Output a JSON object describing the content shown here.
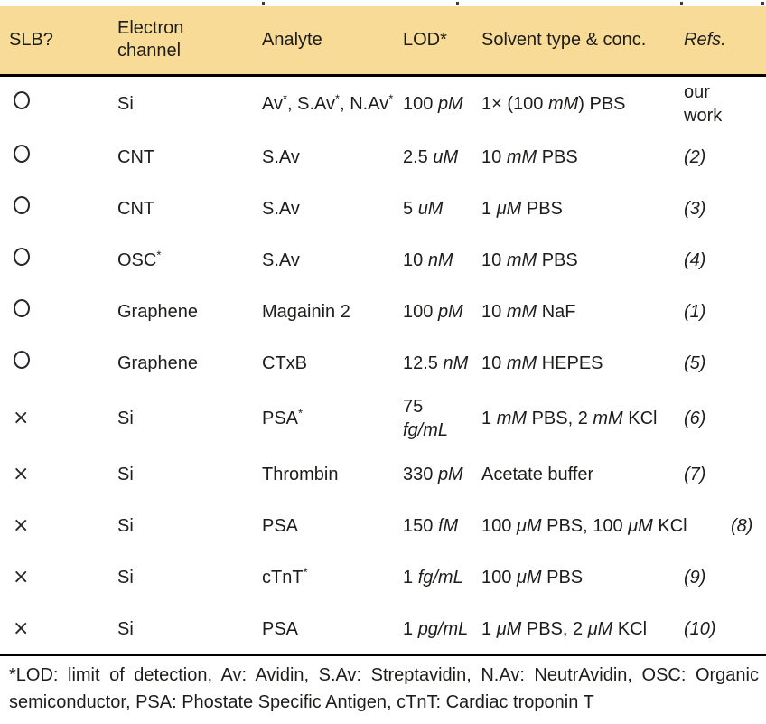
{
  "page": {
    "header_bg": "#F8DB96",
    "text_color": "#1d1d1b"
  },
  "glyphs": {
    "cross": "×",
    "circle": "○"
  },
  "table": {
    "columns": [
      {
        "id": "slb",
        "label": "SLB?"
      },
      {
        "id": "channel",
        "label": "Electron channel"
      },
      {
        "id": "analyte",
        "label": "Analyte"
      },
      {
        "id": "lod",
        "label": "LOD*"
      },
      {
        "id": "solvent",
        "label": "Solvent type & conc."
      },
      {
        "id": "refs",
        "label": "Refs."
      }
    ],
    "rows": [
      {
        "slb": "circle",
        "channel": [
          {
            "t": "Si",
            "s": "n"
          }
        ],
        "analyte": [
          {
            "t": "Av",
            "s": "n"
          },
          {
            "t": "*",
            "s": "sup"
          },
          {
            "t": ", S.Av",
            "s": "n"
          },
          {
            "t": "*",
            "s": "sup"
          },
          {
            "t": ", N.Av",
            "s": "n"
          },
          {
            "t": "*",
            "s": "sup"
          }
        ],
        "lod": [
          {
            "t": "100 ",
            "s": "n"
          },
          {
            "t": "pM",
            "s": "i"
          }
        ],
        "solvent": [
          {
            "t": "1× (100 ",
            "s": "n"
          },
          {
            "t": "mM",
            "s": "i"
          },
          {
            "t": ") PBS",
            "s": "n"
          }
        ],
        "ref": [
          {
            "t": "our",
            "s": "n"
          },
          {
            "s": "br"
          },
          {
            "t": "work",
            "s": "n"
          }
        ]
      },
      {
        "slb": "circle",
        "channel": [
          {
            "t": "CNT",
            "s": "n"
          }
        ],
        "analyte": [
          {
            "t": "S.Av",
            "s": "n"
          }
        ],
        "lod": [
          {
            "t": "2.5 ",
            "s": "n"
          },
          {
            "t": "uM",
            "s": "i"
          }
        ],
        "solvent": [
          {
            "t": "10 ",
            "s": "n"
          },
          {
            "t": "mM",
            "s": "i"
          },
          {
            "t": " PBS",
            "s": "n"
          }
        ],
        "ref": [
          {
            "t": "(2)",
            "s": "i"
          }
        ]
      },
      {
        "slb": "circle",
        "channel": [
          {
            "t": "CNT",
            "s": "n"
          }
        ],
        "analyte": [
          {
            "t": "S.Av",
            "s": "n"
          }
        ],
        "lod": [
          {
            "t": "5 ",
            "s": "n"
          },
          {
            "t": "uM",
            "s": "i"
          }
        ],
        "solvent": [
          {
            "t": "1 ",
            "s": "n"
          },
          {
            "t": "μM",
            "s": "i"
          },
          {
            "t": " PBS",
            "s": "n"
          }
        ],
        "ref": [
          {
            "t": "(3)",
            "s": "i"
          }
        ]
      },
      {
        "slb": "circle",
        "channel": [
          {
            "t": "OSC",
            "s": "n"
          },
          {
            "t": "*",
            "s": "sup"
          }
        ],
        "analyte": [
          {
            "t": "S.Av",
            "s": "n"
          }
        ],
        "lod": [
          {
            "t": "10 ",
            "s": "n"
          },
          {
            "t": "nM",
            "s": "i"
          }
        ],
        "solvent": [
          {
            "t": "10 ",
            "s": "n"
          },
          {
            "t": "mM",
            "s": "i"
          },
          {
            "t": " PBS",
            "s": "n"
          }
        ],
        "ref": [
          {
            "t": "(4)",
            "s": "i"
          }
        ]
      },
      {
        "slb": "circle",
        "channel": [
          {
            "t": "Graphene",
            "s": "n"
          }
        ],
        "analyte": [
          {
            "t": "Magainin 2",
            "s": "n"
          }
        ],
        "lod": [
          {
            "t": "100 ",
            "s": "n"
          },
          {
            "t": "pM",
            "s": "i"
          }
        ],
        "solvent": [
          {
            "t": "10 ",
            "s": "n"
          },
          {
            "t": "mM",
            "s": "i"
          },
          {
            "t": " NaF",
            "s": "n"
          }
        ],
        "ref": [
          {
            "t": "(1)",
            "s": "i"
          }
        ]
      },
      {
        "slb": "circle",
        "channel": [
          {
            "t": "Graphene",
            "s": "n"
          }
        ],
        "analyte": [
          {
            "t": "CTxB",
            "s": "n"
          }
        ],
        "lod": [
          {
            "t": "12.5 ",
            "s": "n"
          },
          {
            "t": "nM",
            "s": "i"
          }
        ],
        "solvent": [
          {
            "t": "10 ",
            "s": "n"
          },
          {
            "t": "mM",
            "s": "i"
          },
          {
            "t": " HEPES",
            "s": "n"
          }
        ],
        "ref": [
          {
            "t": "(5)",
            "s": "i"
          }
        ]
      },
      {
        "slb": "cross",
        "channel": [
          {
            "t": "Si",
            "s": "n"
          }
        ],
        "analyte": [
          {
            "t": "PSA",
            "s": "n"
          },
          {
            "t": "*",
            "s": "sup"
          }
        ],
        "lod": [
          {
            "t": "75",
            "s": "n"
          },
          {
            "s": "br"
          },
          {
            "t": "fg/mL",
            "s": "i"
          }
        ],
        "solvent": [
          {
            "t": "1 ",
            "s": "n"
          },
          {
            "t": "mM",
            "s": "i"
          },
          {
            "t": " PBS, 2 ",
            "s": "n"
          },
          {
            "t": "mM",
            "s": "i"
          },
          {
            "t": " KCl",
            "s": "n"
          }
        ],
        "ref": [
          {
            "t": "(6)",
            "s": "i"
          }
        ]
      },
      {
        "slb": "cross",
        "channel": [
          {
            "t": "Si",
            "s": "n"
          }
        ],
        "analyte": [
          {
            "t": "Thrombin",
            "s": "n"
          }
        ],
        "lod": [
          {
            "t": "330 ",
            "s": "n"
          },
          {
            "t": "pM",
            "s": "i"
          }
        ],
        "solvent": [
          {
            "t": "Acetate buffer",
            "s": "n"
          }
        ],
        "ref": [
          {
            "t": "(7)",
            "s": "i"
          }
        ]
      },
      {
        "slb": "cross",
        "channel": [
          {
            "t": "Si",
            "s": "n"
          }
        ],
        "analyte": [
          {
            "t": "PSA",
            "s": "n"
          }
        ],
        "lod": [
          {
            "t": "150 ",
            "s": "n"
          },
          {
            "t": "fM",
            "s": "i"
          }
        ],
        "solvent": [
          {
            "t": "100 ",
            "s": "n"
          },
          {
            "t": "μM",
            "s": "i"
          },
          {
            "t": " PBS, 100 ",
            "s": "n"
          },
          {
            "t": "μM",
            "s": "i"
          },
          {
            "t": " KCl",
            "s": "n"
          }
        ],
        "ref": [
          {
            "t": "(8)",
            "s": "i"
          }
        ]
      },
      {
        "slb": "cross",
        "channel": [
          {
            "t": "Si",
            "s": "n"
          }
        ],
        "analyte": [
          {
            "t": "cTnT",
            "s": "n"
          },
          {
            "t": "*",
            "s": "sup"
          }
        ],
        "lod": [
          {
            "t": "1 ",
            "s": "n"
          },
          {
            "t": "fg/mL",
            "s": "i"
          }
        ],
        "solvent": [
          {
            "t": "100 ",
            "s": "n"
          },
          {
            "t": "μM",
            "s": "i"
          },
          {
            "t": " PBS",
            "s": "n"
          }
        ],
        "ref": [
          {
            "t": "(9)",
            "s": "i"
          }
        ]
      },
      {
        "slb": "cross",
        "channel": [
          {
            "t": "Si",
            "s": "n"
          }
        ],
        "analyte": [
          {
            "t": "PSA",
            "s": "n"
          }
        ],
        "lod": [
          {
            "t": "1 ",
            "s": "n"
          },
          {
            "t": "pg/mL",
            "s": "i"
          }
        ],
        "solvent": [
          {
            "t": "1 ",
            "s": "n"
          },
          {
            "t": "μM",
            "s": "i"
          },
          {
            "t": " PBS, 2 ",
            "s": "n"
          },
          {
            "t": "μM",
            "s": "i"
          },
          {
            "t": " KCl",
            "s": "n"
          }
        ],
        "ref": [
          {
            "t": "(10)",
            "s": "i"
          }
        ]
      }
    ]
  },
  "footnote": {
    "line1": "*LOD: limit of detection, Av: Avidin, S.Av: Streptavidin, N.Av: NeutrAvidin, OSC: Organic",
    "line2": "semiconductor, PSA: Phostate Specific Antigen, cTnT: Cardiac troponin T"
  }
}
